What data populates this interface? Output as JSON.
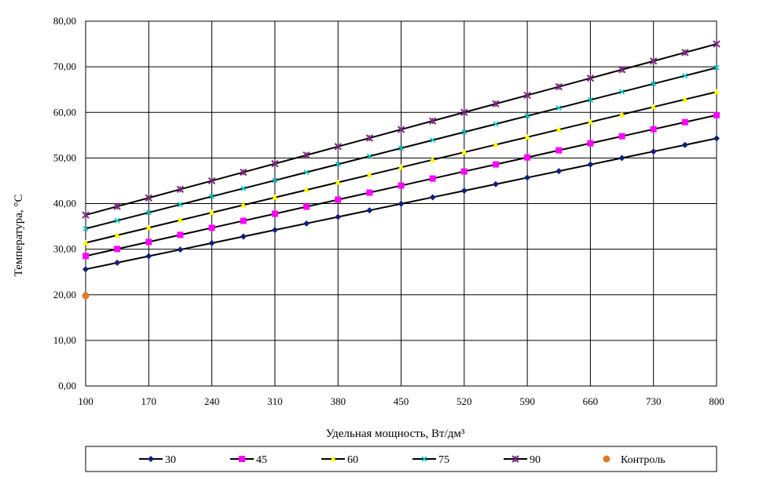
{
  "chart_data": {
    "type": "line",
    "title": "",
    "xlabel": "Удельная мощность, Вт/дм³",
    "ylabel": "Температура, °С",
    "xlim": [
      100,
      800
    ],
    "ylim": [
      0,
      80
    ],
    "x_ticks": [
      "100",
      "170",
      "240",
      "310",
      "380",
      "450",
      "520",
      "590",
      "660",
      "730",
      "800"
    ],
    "y_ticks": [
      "0,00",
      "10,00",
      "20,00",
      "30,00",
      "40,00",
      "50,00",
      "60,00",
      "70,00",
      "80,00"
    ],
    "grid": true,
    "legend_position": "bottom",
    "x": [
      100,
      135,
      170,
      205,
      240,
      275,
      310,
      345,
      380,
      415,
      450,
      485,
      520,
      555,
      590,
      625,
      660,
      695,
      730,
      765,
      800
    ],
    "series": [
      {
        "name": "30",
        "color": "#0d1f7a",
        "marker": "diamond",
        "start": 25.6,
        "end": 54.3
      },
      {
        "name": "45",
        "color": "#ff00ff",
        "marker": "square",
        "start": 28.5,
        "end": 59.4
      },
      {
        "name": "60",
        "color": "#ffff00",
        "marker": "triangle",
        "start": 31.4,
        "end": 64.5
      },
      {
        "name": "75",
        "color": "#00cccc",
        "marker": "cross",
        "start": 34.5,
        "end": 69.8
      },
      {
        "name": "90",
        "color": "#7a2a7a",
        "marker": "star",
        "start": 37.5,
        "end": 75.0
      }
    ],
    "control": {
      "name": "Контроль",
      "color": "#e07b2e",
      "marker": "circle",
      "x": 100,
      "y": 19.8
    }
  }
}
